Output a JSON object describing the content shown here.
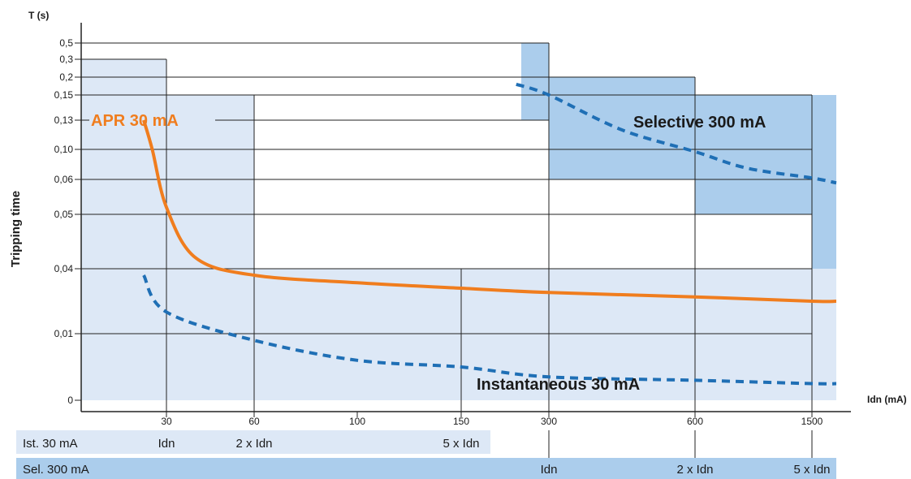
{
  "chart_data": {
    "type": "line",
    "y_axis_title": "T (s)",
    "x_axis_title": "Idn (mA)",
    "ylabel": "Tripping time",
    "y_ticks": [
      "0",
      "0,01",
      "0,04",
      "0,05",
      "0,06",
      "0,10",
      "0,13",
      "0,15",
      "0,2",
      "0,3",
      "0,5"
    ],
    "x_ticks": [
      "30",
      "60",
      "100",
      "150",
      "300",
      "600",
      "1500"
    ],
    "grid": true,
    "series": [
      {
        "name": "APR 30 mA",
        "color": "#f07d1e",
        "style": "solid",
        "points": [
          [
            22,
            0.13
          ],
          [
            25,
            0.1
          ],
          [
            30,
            0.052
          ],
          [
            40,
            0.042
          ],
          [
            60,
            0.037
          ],
          [
            100,
            0.0335
          ],
          [
            150,
            0.031
          ],
          [
            300,
            0.029
          ],
          [
            600,
            0.027
          ],
          [
            1500,
            0.025
          ],
          [
            1700,
            0.025
          ]
        ]
      },
      {
        "name": "Instantaneous 30 mA",
        "color": "#1f6fb5",
        "style": "dashed",
        "points": [
          [
            22,
            0.037
          ],
          [
            30,
            0.02
          ],
          [
            60,
            0.009
          ],
          [
            100,
            0.006
          ],
          [
            150,
            0.005
          ],
          [
            300,
            0.0035
          ],
          [
            600,
            0.003
          ],
          [
            1500,
            0.0025
          ],
          [
            1700,
            0.0025
          ]
        ]
      },
      {
        "name": "Selective 300 mA",
        "color": "#1f6fb5",
        "style": "dashed",
        "points": [
          [
            260,
            0.18
          ],
          [
            300,
            0.15
          ],
          [
            450,
            0.12
          ],
          [
            600,
            0.097
          ],
          [
            1000,
            0.075
          ],
          [
            1500,
            0.062
          ],
          [
            1700,
            0.059
          ]
        ]
      }
    ],
    "zones": [
      {
        "name": "instantaneous-zone-low",
        "x": [
          0,
          1700
        ],
        "y": [
          0,
          0.04
        ],
        "shade": "light"
      },
      {
        "name": "instantaneous-zone-30",
        "x": [
          0,
          30
        ],
        "y": [
          0,
          0.3
        ],
        "shade": "light"
      },
      {
        "name": "instantaneous-zone-60",
        "x": [
          30,
          60
        ],
        "y": [
          0,
          0.15
        ],
        "shade": "light"
      },
      {
        "name": "selective-zone-300",
        "x": [
          270,
          300
        ],
        "y": [
          0.13,
          0.5
        ],
        "shade": "dark"
      },
      {
        "name": "selective-zone-600",
        "x": [
          300,
          600
        ],
        "y": [
          0.06,
          0.2
        ],
        "shade": "dark"
      },
      {
        "name": "selective-zone-1500",
        "x": [
          600,
          1500
        ],
        "y": [
          0.05,
          0.15
        ],
        "shade": "dark"
      },
      {
        "name": "selective-zone-end",
        "x": [
          1500,
          1700
        ],
        "y": [
          0.04,
          0.15
        ],
        "shade": "dark"
      }
    ],
    "colors": {
      "light_zone": "#dde8f6",
      "dark_zone": "#abcdec",
      "orange": "#f07d1e",
      "blue": "#1f6fb5"
    }
  },
  "bands": {
    "ist": {
      "label": "Ist.  30 mA",
      "markers": [
        {
          "x": "30",
          "text": "Idn"
        },
        {
          "x": "60",
          "text": "2 x Idn"
        },
        {
          "x": "150",
          "text": "5 x Idn"
        }
      ]
    },
    "sel": {
      "label": "Sel.  300 mA",
      "markers": [
        {
          "x": "300",
          "text": "Idn"
        },
        {
          "x": "600",
          "text": "2 x Idn"
        },
        {
          "x": "1500",
          "text": "5 x Idn"
        }
      ]
    }
  }
}
